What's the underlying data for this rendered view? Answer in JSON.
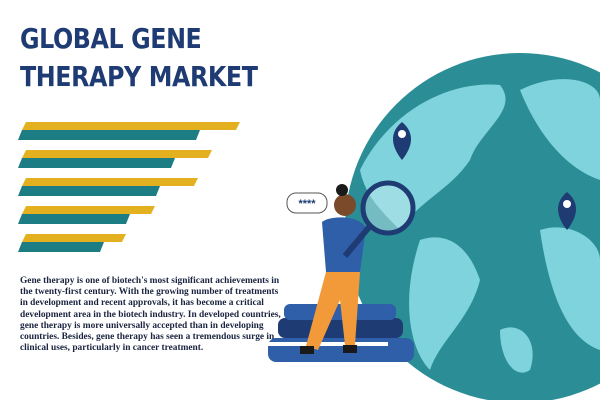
{
  "header": {
    "title": "GLOBAL GENE THERAPY MARKET"
  },
  "illustration": {
    "bubble_text": "****"
  },
  "body": {
    "paragraph": "Gene therapy is one of biotech's most significant achievements in the twenty-first century. With the growing number of treatments in development and recent approvals, it has become a critical development area in the biotech industry. In developed countries, gene therapy is more universally accepted than in developing countries. Besides, gene therapy has seen a tremendous surge in clinical uses, particularly in cancer treatment."
  }
}
